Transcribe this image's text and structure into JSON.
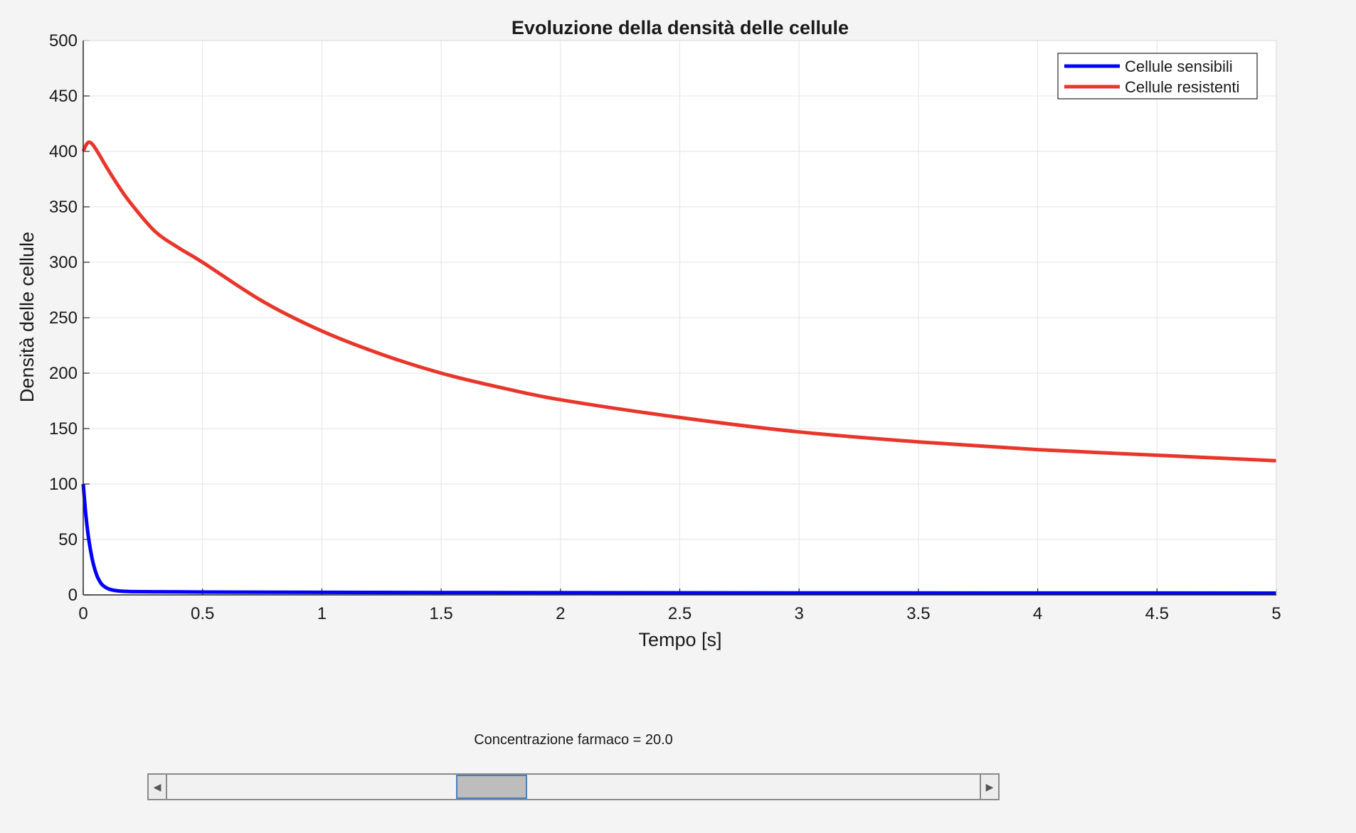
{
  "window": {
    "slider_label": "Concentrazione farmaco = 20.0",
    "slider_position_fraction": 0.39
  },
  "chart_data": {
    "type": "line",
    "title": "Evoluzione della densità delle cellule",
    "xlabel": "Tempo [s]",
    "ylabel": "Densità delle cellule",
    "xlim": [
      0,
      5
    ],
    "ylim": [
      0,
      500
    ],
    "xticks": [
      0,
      0.5,
      1,
      1.5,
      2,
      2.5,
      3,
      3.5,
      4,
      4.5,
      5
    ],
    "xtick_labels": [
      "0",
      "0.5",
      "1",
      "1.5",
      "2",
      "2.5",
      "3",
      "3.5",
      "4",
      "4.5",
      "5"
    ],
    "yticks": [
      0,
      50,
      100,
      150,
      200,
      250,
      300,
      350,
      400,
      450,
      500
    ],
    "ytick_labels": [
      "0",
      "50",
      "100",
      "150",
      "200",
      "250",
      "300",
      "350",
      "400",
      "450",
      "500"
    ],
    "grid": true,
    "legend_position": "top-right",
    "series": [
      {
        "name": "Cellule sensibili",
        "color": "#0000ff",
        "x": [
          0,
          0.01,
          0.02,
          0.03,
          0.04,
          0.05,
          0.06,
          0.07,
          0.08,
          0.1,
          0.12,
          0.15,
          0.2,
          0.3,
          0.5,
          1,
          1.5,
          2,
          3,
          4,
          5
        ],
        "y": [
          100,
          74,
          55,
          41,
          30,
          22,
          16,
          12,
          9,
          6,
          4.5,
          3.5,
          3,
          2.8,
          2.6,
          2.3,
          2.1,
          2,
          1.8,
          1.7,
          1.6
        ]
      },
      {
        "name": "Cellule resistenti",
        "color": "#e8362b",
        "x": [
          0,
          0.01,
          0.02,
          0.03,
          0.04,
          0.05,
          0.07,
          0.1,
          0.15,
          0.2,
          0.3,
          0.4,
          0.5,
          0.75,
          1,
          1.25,
          1.5,
          1.75,
          2,
          2.5,
          3,
          3.5,
          4,
          4.5,
          5
        ],
        "y": [
          400,
          405,
          408,
          408,
          406,
          403,
          396,
          385,
          368,
          353,
          328,
          313,
          300,
          265,
          238,
          217,
          200,
          187,
          176,
          160,
          147,
          138,
          131,
          126,
          121
        ]
      }
    ]
  }
}
